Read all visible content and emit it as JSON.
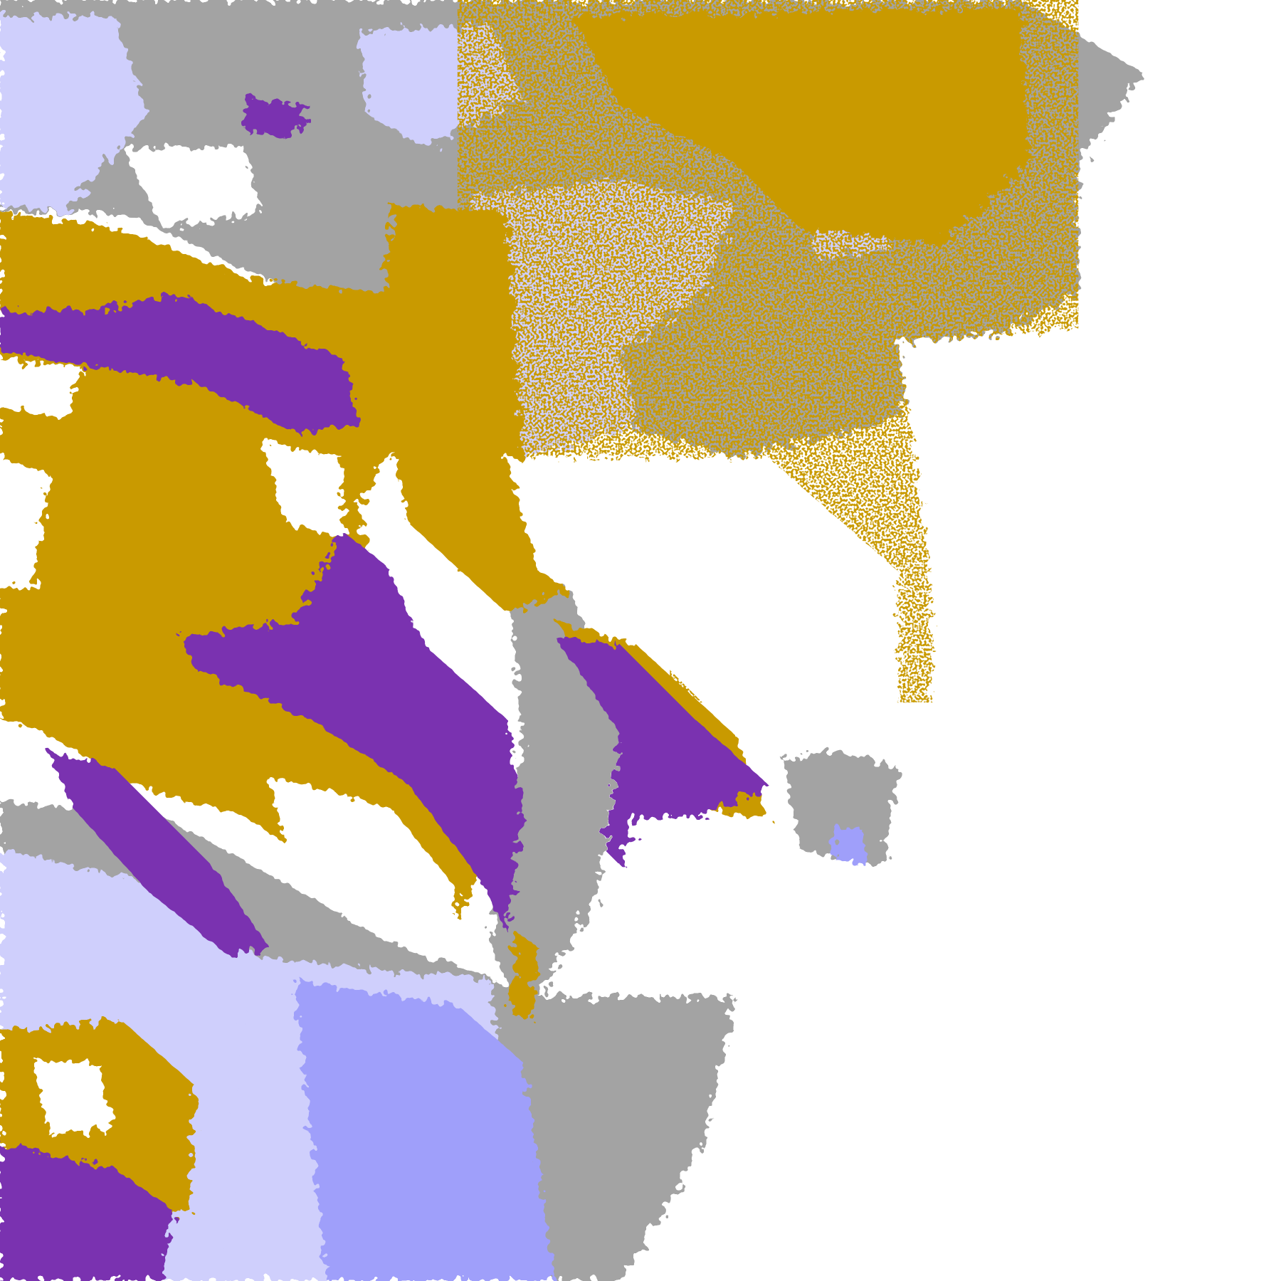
{
  "map": {
    "colors": {
      "background": "#ffffff",
      "gold": "#c99a06",
      "purple": "#7a33b0",
      "lavender": "#cfcffc",
      "periwinkle": "#9f9ffa",
      "gray": "#a3a3a3",
      "pale": "#ececff"
    }
  }
}
